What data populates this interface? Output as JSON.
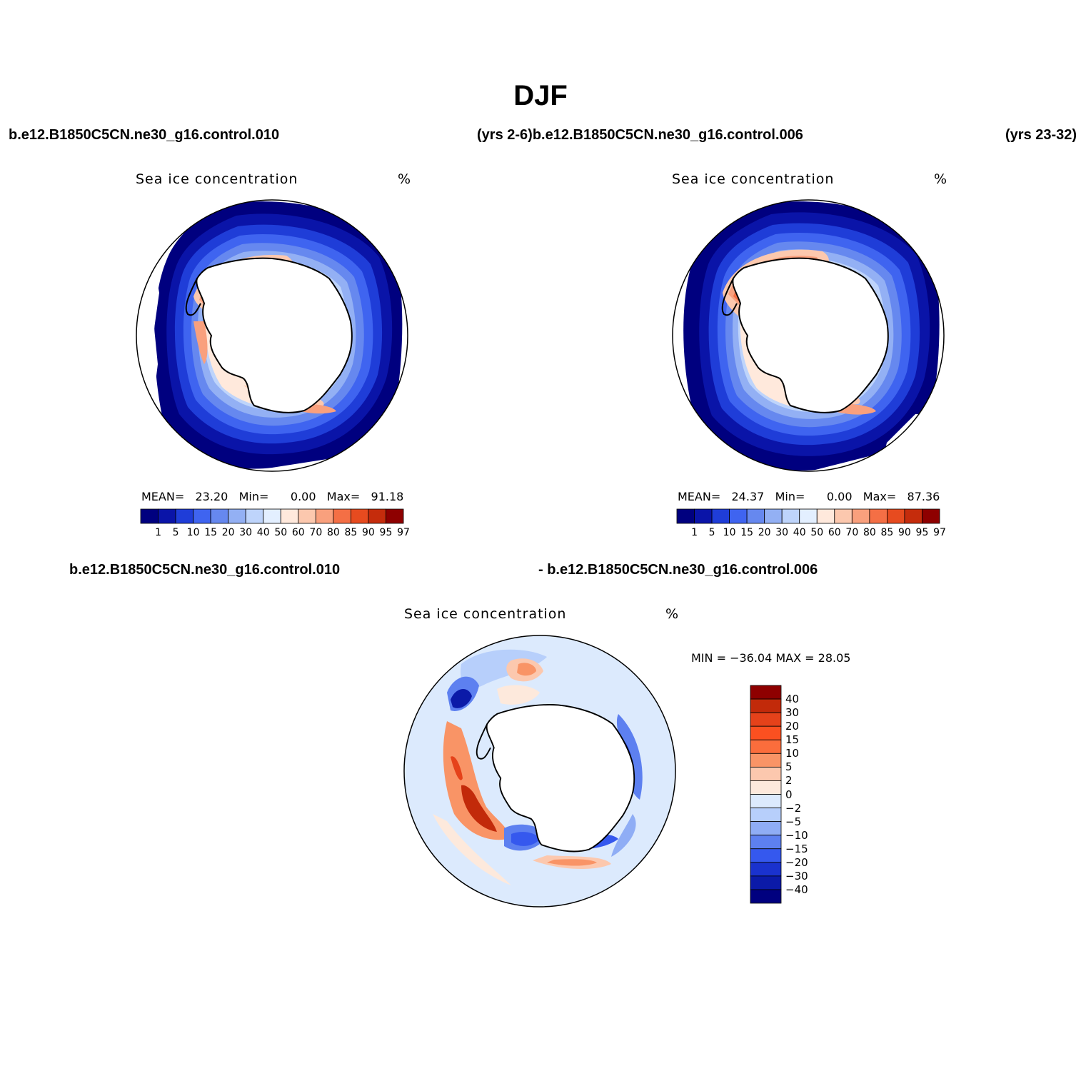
{
  "figure_title": "DJF",
  "headers": {
    "top_left": "b.e12.B1850C5CN.ne30_g16.control.010",
    "top_middle": "(yrs 2-6)b.e12.B1850C5CN.ne30_g16.control.006",
    "top_right": "(yrs 23-32)",
    "bottom_left": "b.e12.B1850C5CN.ne30_g16.control.010",
    "bottom_right": "- b.e12.B1850C5CN.ne30_g16.control.006"
  },
  "panels": [
    {
      "title": "Sea ice concentration",
      "unit": "%",
      "stats": {
        "mean_label": "MEAN=",
        "mean": "23.20",
        "min_label": "Min=",
        "min": "0.00",
        "max_label": "Max=",
        "max": "91.18"
      }
    },
    {
      "title": "Sea ice concentration",
      "unit": "%",
      "stats": {
        "mean_label": "MEAN=",
        "mean": "24.37",
        "min_label": "Min=",
        "min": "0.00",
        "max_label": "Max=",
        "max": "87.36"
      }
    },
    {
      "title": "Sea ice concentration",
      "unit": "%",
      "stats_text": "MIN = −36.04 MAX =   28.05"
    }
  ],
  "colorbar_main": {
    "levels": [
      "1",
      "5",
      "10",
      "15",
      "20",
      "30",
      "40",
      "50",
      "60",
      "70",
      "80",
      "85",
      "90",
      "95",
      "97"
    ],
    "colors": [
      "#00007f",
      "#0a14a8",
      "#1f3dd8",
      "#3f64f0",
      "#6688ef",
      "#93b0f4",
      "#bed4fb",
      "#e3efff",
      "#ffe9dc",
      "#fcc8ae",
      "#f9a07d",
      "#f46f45",
      "#e74b1f",
      "#c52c0c",
      "#8e0000"
    ]
  },
  "colorbar_diff": {
    "levels": [
      "40",
      "30",
      "20",
      "15",
      "10",
      "5",
      "2",
      "0",
      "−2",
      "−5",
      "−10",
      "−15",
      "−20",
      "−30",
      "−40"
    ],
    "colors": [
      "#8e0000",
      "#c22a0a",
      "#e5421a",
      "#fb5020",
      "#fb6d3c",
      "#f99466",
      "#fcc8ae",
      "#fde9dc",
      "#dceafd",
      "#b7cffb",
      "#8fadf5",
      "#5d80f0",
      "#3558ee",
      "#1a32ce",
      "#0b1aa8",
      "#00007f"
    ]
  }
}
